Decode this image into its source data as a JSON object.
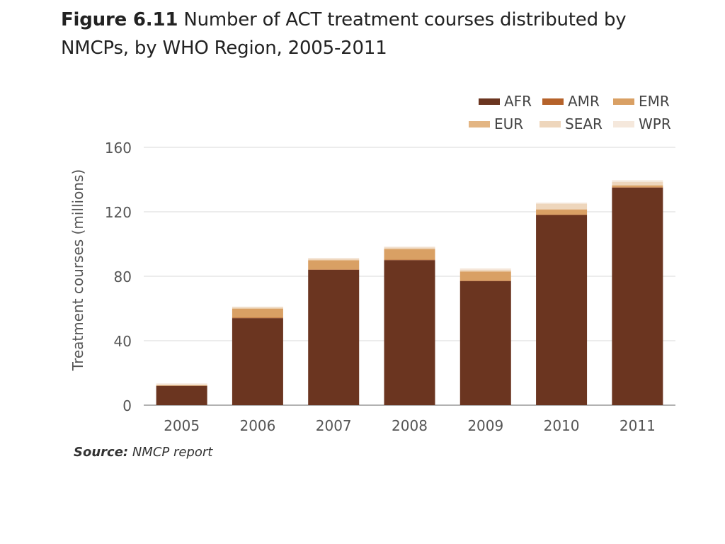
{
  "figure": {
    "label": "Figure 6.11",
    "title": "Number of ACT treatment courses distributed by NMCPs, by WHO Region, 2005-2011"
  },
  "source": {
    "label": "Source:",
    "text": "NMCP report"
  },
  "chart_data": {
    "type": "bar",
    "stacked": true,
    "categories": [
      "2005",
      "2006",
      "2007",
      "2008",
      "2009",
      "2010",
      "2011"
    ],
    "series": [
      {
        "name": "AFR",
        "color": "#6b3520",
        "values": [
          12,
          54,
          84,
          90,
          77,
          118,
          135
        ]
      },
      {
        "name": "AMR",
        "color": "#b5622a",
        "values": [
          0,
          0.3,
          0.3,
          0.3,
          0.3,
          0.3,
          0.3
        ]
      },
      {
        "name": "EMR",
        "color": "#d9a064",
        "values": [
          0.3,
          5.5,
          5.5,
          6.5,
          5.5,
          3,
          1
        ]
      },
      {
        "name": "EUR",
        "color": "#e3b583",
        "values": [
          0,
          0.3,
          0.3,
          0.3,
          0.3,
          0.3,
          0.3
        ]
      },
      {
        "name": "SEAR",
        "color": "#eed6bc",
        "values": [
          0.5,
          0.6,
          0.7,
          0.8,
          1.0,
          3.4,
          2
        ]
      },
      {
        "name": "WPR",
        "color": "#f5e8dc",
        "values": [
          0.7,
          0.5,
          0.6,
          0.5,
          0.8,
          0.7,
          1.0
        ]
      }
    ],
    "ylabel": "Treatment courses (millions)",
    "xlabel": "",
    "ylim": [
      0,
      160
    ],
    "yticks": [
      0,
      40,
      80,
      120,
      160
    ],
    "grid": true,
    "legend_position": "top-right"
  }
}
